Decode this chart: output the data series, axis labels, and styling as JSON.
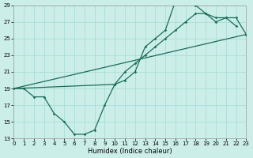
{
  "xlabel": "Humidex (Indice chaleur)",
  "xlim": [
    0,
    23
  ],
  "ylim": [
    13,
    29
  ],
  "xticks": [
    0,
    1,
    2,
    3,
    4,
    5,
    6,
    7,
    8,
    9,
    10,
    11,
    12,
    13,
    14,
    15,
    16,
    17,
    18,
    19,
    20,
    21,
    22,
    23
  ],
  "yticks": [
    13,
    15,
    17,
    19,
    21,
    23,
    25,
    27,
    29
  ],
  "bg_color": "#cceee8",
  "grid_color": "#aaddda",
  "line_color": "#1a6b5a",
  "line1_x": [
    0,
    23
  ],
  "line1_y": [
    19,
    25.5
  ],
  "line2_x": [
    0,
    1,
    2,
    3,
    4,
    5,
    6,
    7,
    8,
    9,
    10,
    11,
    12,
    13,
    14,
    15,
    16,
    17,
    18,
    19,
    20,
    21,
    22
  ],
  "line2_y": [
    19,
    19,
    18,
    18,
    16,
    15,
    13.5,
    13.5,
    14,
    17,
    19.5,
    20,
    21,
    24,
    25,
    26,
    29.5,
    29.5,
    29,
    28,
    27.5,
    27.5,
    26.5
  ],
  "line3_x": [
    0,
    10,
    11,
    12,
    13,
    14,
    15,
    16,
    17,
    18,
    19,
    20,
    21,
    22,
    23
  ],
  "line3_y": [
    19,
    19.5,
    21,
    22,
    23,
    24,
    25,
    26,
    27,
    28,
    28,
    27,
    27.5,
    27.5,
    25.5
  ]
}
